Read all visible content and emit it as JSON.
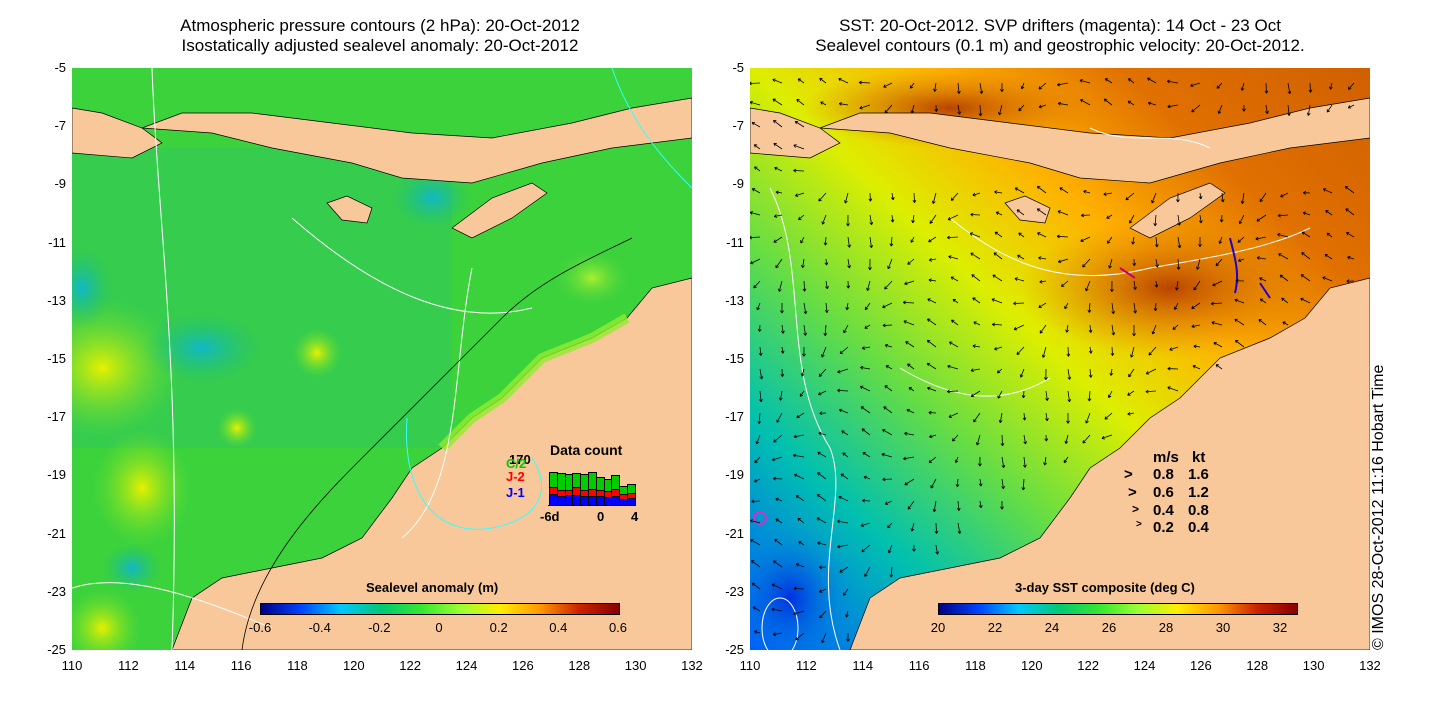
{
  "left_panel": {
    "title_line1": "Atmospheric pressure contours (2 hPa): 20-Oct-2012",
    "title_line2": "Isostatically adjusted sealevel anomaly: 20-Oct-2012",
    "colorbar_title": "Sealevel anomaly (m)",
    "colorbar_ticks": [
      "-0.6",
      "-0.4",
      "-0.2",
      "0",
      "0.2",
      "0.4",
      "0.6"
    ],
    "data_count": {
      "title": "Data count",
      "max_label": "170",
      "series_labels": [
        "C/2",
        "J-2",
        "J-1"
      ],
      "series_colors": [
        "#00cc00",
        "#ff0000",
        "#0000ff"
      ],
      "x_ticks": [
        "-6d",
        "0",
        "4"
      ]
    }
  },
  "right_panel": {
    "title_line1": "SST: 20-Oct-2012. SVP drifters (magenta): 14 Oct - 23 Oct",
    "title_line2": "Sealevel contours (0.1 m) and geostrophic velocity: 20-Oct-2012.",
    "colorbar_title": "3-day SST composite (deg C)",
    "colorbar_ticks": [
      "20",
      "22",
      "24",
      "26",
      "28",
      "30",
      "32"
    ],
    "velocity_legend": {
      "header_ms": "m/s",
      "header_kt": "kt",
      "rows": [
        {
          "ms": "0.8",
          "kt": "1.6"
        },
        {
          "ms": "0.6",
          "kt": "1.2"
        },
        {
          "ms": "0.4",
          "kt": "0.8"
        },
        {
          "ms": "0.2",
          "kt": "0.4"
        }
      ]
    }
  },
  "axes": {
    "y_ticks": [
      "-5",
      "-7",
      "-9",
      "-11",
      "-13",
      "-15",
      "-17",
      "-19",
      "-21",
      "-23",
      "-25"
    ],
    "x_ticks": [
      "110",
      "112",
      "114",
      "116",
      "118",
      "120",
      "122",
      "124",
      "126",
      "128",
      "130",
      "132"
    ]
  },
  "copyright": "© IMOS 28-Oct-2012 11:16 Hobart Time",
  "colors": {
    "land": "#f9c89a",
    "sla_scale": [
      "#000088",
      "#0044ff",
      "#00c8ff",
      "#00c878",
      "#33e633",
      "#99ff33",
      "#ffee00",
      "#ff9900",
      "#cc2200",
      "#880000"
    ],
    "sst_scale": [
      "#000088",
      "#0044ff",
      "#00c8ff",
      "#00c878",
      "#33e633",
      "#99ff33",
      "#ffee00",
      "#ff9900",
      "#cc2200",
      "#880000"
    ]
  }
}
